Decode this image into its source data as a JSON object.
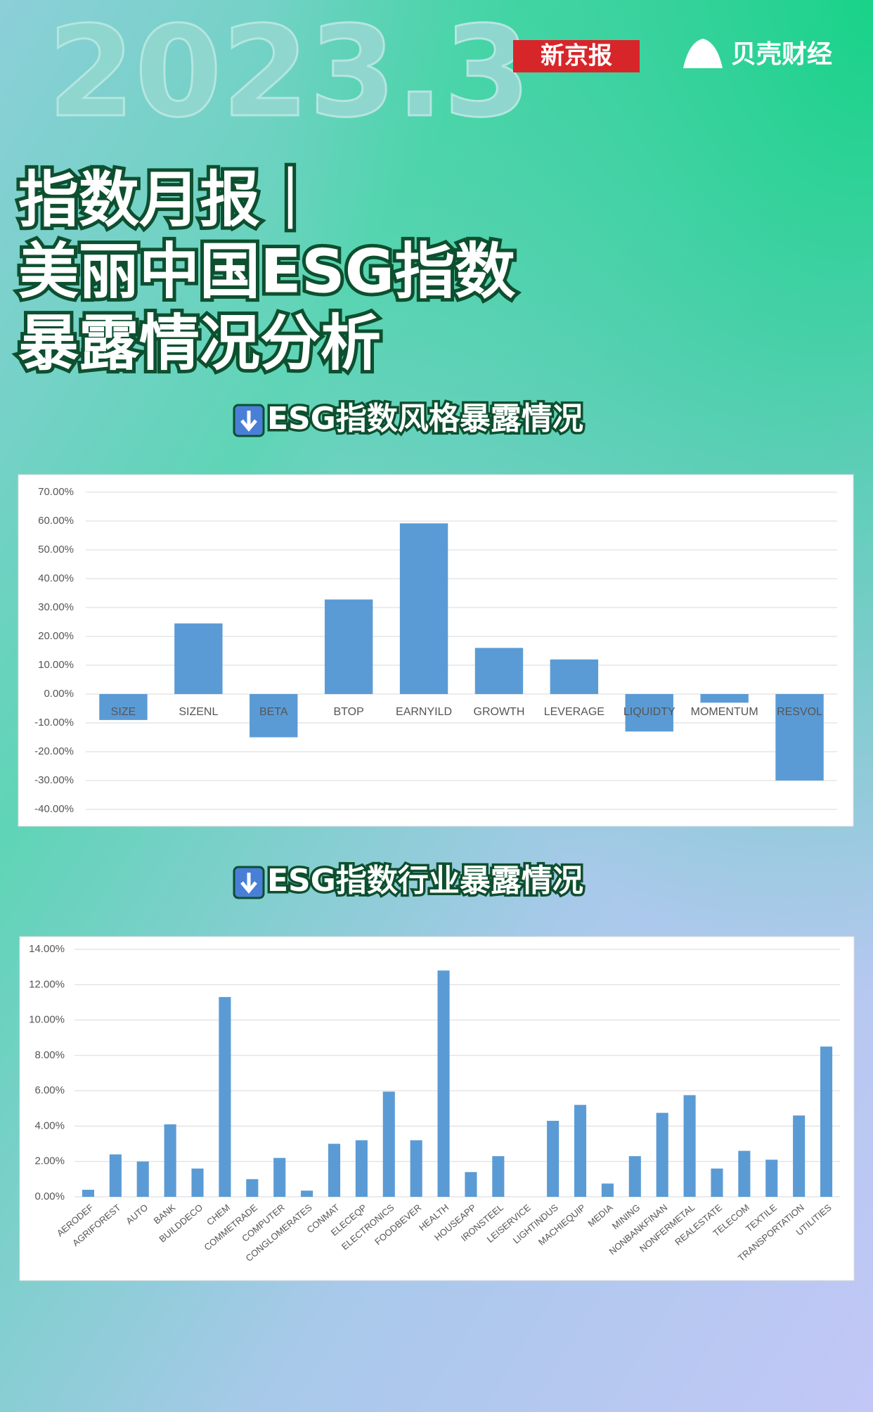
{
  "header": {
    "date": "2023.3",
    "logos": [
      "新京报",
      "贝壳财经"
    ],
    "title": [
      "指数月报｜",
      "美丽中国ESG指数",
      "暴露情况分析"
    ]
  },
  "sections": [
    "ESG指数风格暴露情况",
    "ESG指数行业暴露情况"
  ],
  "chart_data": [
    {
      "type": "bar",
      "color": "#5b9bd5",
      "grid": true,
      "categories": [
        "SIZE",
        "SIZENL",
        "BETA",
        "BTOP",
        "EARNYILD",
        "GROWTH",
        "LEVERAGE",
        "LIQUIDTY",
        "MOMENTUM",
        "RESVOL"
      ],
      "values": [
        -9,
        24.5,
        -15,
        32.8,
        59.2,
        16,
        12,
        -13,
        -3,
        -30
      ],
      "ylim": [
        -40,
        70
      ],
      "yticks": [
        {
          "value": -40,
          "label": "-40.00%"
        },
        {
          "value": -30,
          "label": "-30.00%"
        },
        {
          "value": -20,
          "label": "-20.00%"
        },
        {
          "value": -10,
          "label": "-10.00%"
        },
        {
          "value": 0,
          "label": "0.00%"
        },
        {
          "value": 10,
          "label": "10.00%"
        },
        {
          "value": 20,
          "label": "20.00%"
        },
        {
          "value": 30,
          "label": "30.00%"
        },
        {
          "value": 40,
          "label": "40.00%"
        },
        {
          "value": 50,
          "label": "50.00%"
        },
        {
          "value": 60,
          "label": "60.00%"
        },
        {
          "value": 70,
          "label": "70.00%"
        }
      ]
    },
    {
      "type": "bar",
      "color": "#5b9bd5",
      "grid": true,
      "categories": [
        "AERODEF",
        "AGRIFOREST",
        "AUTO",
        "BANK",
        "BUILDDECO",
        "CHEM",
        "COMMETRADE",
        "COMPUTER",
        "CONGLOMERATES",
        "CONMAT",
        "ELECEQP",
        "ELECTRONICS",
        "FOODBEVER",
        "HEALTH",
        "HOUSEAPP",
        "IRONSTEEL",
        "LEISERVICE",
        "LIGHTINDUS",
        "MACHIEQUIP",
        "MEDIA",
        "MINING",
        "NONBANKFINAN",
        "NONFERMETAL",
        "REALESTATE",
        "TELECOM",
        "TEXTILE",
        "TRANSPORTATION",
        "UTILITIES"
      ],
      "values": [
        0.4,
        2.4,
        2.0,
        4.1,
        1.6,
        11.3,
        1.0,
        2.2,
        0.35,
        3.0,
        3.2,
        5.95,
        3.2,
        12.8,
        1.4,
        2.3,
        0,
        4.3,
        5.2,
        0.75,
        2.3,
        4.75,
        5.75,
        1.6,
        2.6,
        2.1,
        4.6,
        8.5
      ],
      "ylim": [
        0,
        14
      ],
      "yticks": [
        {
          "value": 0,
          "label": "0.00%"
        },
        {
          "value": 2,
          "label": "2.00%"
        },
        {
          "value": 4,
          "label": "4.00%"
        },
        {
          "value": 6,
          "label": "6.00%"
        },
        {
          "value": 8,
          "label": "8.00%"
        },
        {
          "value": 10,
          "label": "10.00%"
        },
        {
          "value": 12,
          "label": "12.00%"
        },
        {
          "value": 14,
          "label": "14.00%"
        }
      ]
    }
  ]
}
